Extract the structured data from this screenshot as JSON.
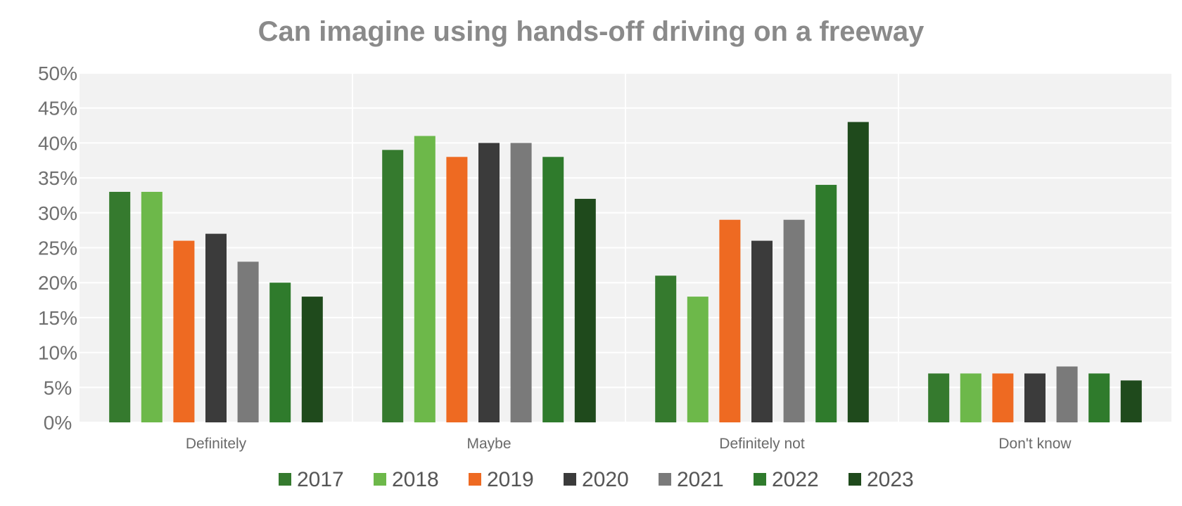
{
  "colors": {
    "2017": "#357a2e",
    "2018": "#6db84a",
    "2019": "#ee6a22",
    "2020": "#3b3b3b",
    "2021": "#7a7a7a",
    "2022": "#2f7b2c",
    "2023": "#1f4a1c",
    "plot_bg": "#f2f2f2",
    "grid": "#ffffff"
  },
  "chart_data": {
    "type": "bar",
    "title": "Can imagine using hands-off driving on a freeway",
    "xlabel": "",
    "ylabel": "",
    "ylim": [
      0,
      50
    ],
    "yticks": [
      "0%",
      "5%",
      "10%",
      "15%",
      "20%",
      "25%",
      "30%",
      "35%",
      "40%",
      "45%",
      "50%"
    ],
    "grid": true,
    "legend": "bottom",
    "categories": [
      "Definitely",
      "Maybe",
      "Definitely not",
      "Don't know"
    ],
    "series": [
      {
        "name": "2017",
        "values": [
          33,
          39,
          21,
          7
        ]
      },
      {
        "name": "2018",
        "values": [
          33,
          41,
          18,
          7
        ]
      },
      {
        "name": "2019",
        "values": [
          26,
          38,
          29,
          7
        ]
      },
      {
        "name": "2020",
        "values": [
          27,
          40,
          26,
          7
        ]
      },
      {
        "name": "2021",
        "values": [
          23,
          40,
          29,
          8
        ]
      },
      {
        "name": "2022",
        "values": [
          20,
          38,
          34,
          7
        ]
      },
      {
        "name": "2023",
        "values": [
          18,
          32,
          43,
          6
        ]
      }
    ]
  }
}
